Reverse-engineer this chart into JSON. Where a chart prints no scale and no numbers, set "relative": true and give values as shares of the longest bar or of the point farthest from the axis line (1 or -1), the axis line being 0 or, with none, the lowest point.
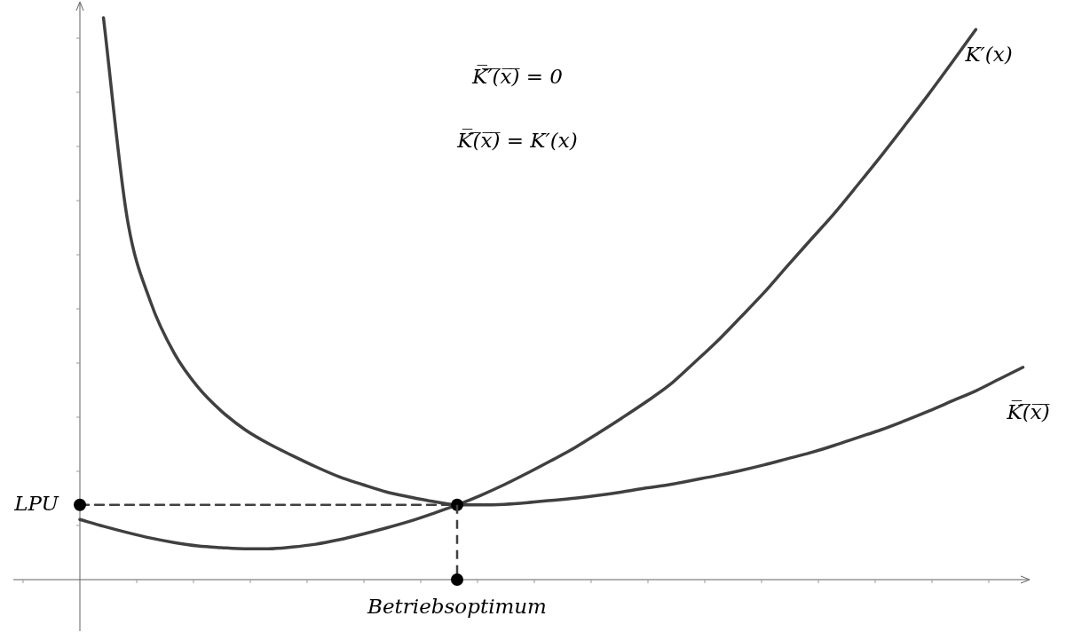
{
  "chart_data": {
    "type": "line",
    "relative": true,
    "categories": [
      null,
      null,
      null,
      null,
      null,
      null,
      null,
      null,
      null,
      null,
      null,
      null,
      null,
      null,
      null,
      null,
      null,
      null,
      null,
      null,
      null,
      null,
      null,
      null,
      null,
      null,
      null,
      null,
      null,
      null,
      null,
      null,
      null,
      null,
      null,
      null,
      null,
      null,
      null,
      null,
      null
    ],
    "series": [
      {
        "name": "K′(x)",
        "color": "#404040",
        "values": [
          0.107,
          0.095,
          0.084,
          0.074,
          0.066,
          0.06,
          0.057,
          0.055,
          0.055,
          0.058,
          0.063,
          0.071,
          0.081,
          0.092,
          0.104,
          0.118,
          0.133,
          0.15,
          0.169,
          0.19,
          0.212,
          0.235,
          0.261,
          0.288,
          0.316,
          0.346,
          0.384,
          0.423,
          0.466,
          0.51,
          0.558,
          0.605,
          0.652,
          0.703,
          0.755,
          0.809,
          0.864,
          0.921,
          0.979,
          null,
          null
        ]
      },
      {
        "name": "K̅(̅x̅)̅",
        "color": "#404040",
        "values": [
          null,
          1.0,
          0.645,
          0.494,
          0.403,
          0.343,
          0.3,
          0.267,
          0.242,
          0.221,
          0.201,
          0.183,
          0.169,
          0.156,
          0.147,
          0.139,
          0.133,
          0.133,
          0.134,
          0.137,
          0.141,
          0.145,
          0.15,
          0.156,
          0.163,
          0.169,
          0.177,
          0.185,
          0.194,
          0.204,
          0.215,
          0.226,
          0.239,
          0.253,
          0.267,
          0.283,
          0.3,
          0.318,
          0.336,
          0.357,
          0.378
        ]
      },
      {
        "name": "LPU",
        "type": "line",
        "line_style": "dashed",
        "marker": "circle",
        "color": "#404040",
        "values": [
          0.133,
          null,
          null,
          null,
          null,
          null,
          null,
          null,
          null,
          null,
          null,
          null,
          null,
          null,
          null,
          null,
          0.133,
          null,
          null,
          null,
          null,
          null,
          null,
          null,
          null,
          null,
          null,
          null,
          null,
          null,
          null,
          null,
          null,
          null,
          null,
          null,
          null,
          null,
          null,
          null,
          null
        ]
      }
    ],
    "annotations": [
      "K̅′̅(̅x̅)̅ = 0",
      "K̅(̅x̅)̅ = K′(x)",
      {
        "text": "Betriebsoptimum",
        "y": 0
      }
    ]
  }
}
